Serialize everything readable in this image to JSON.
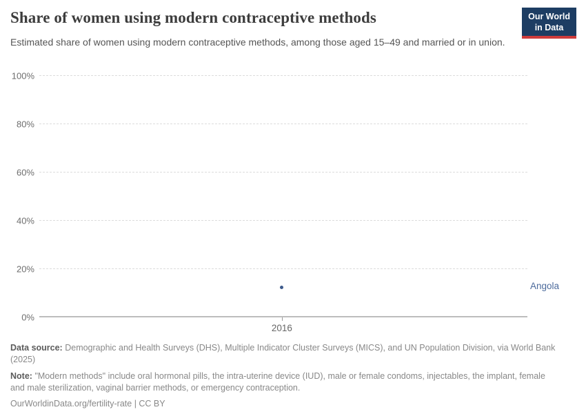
{
  "header": {
    "title": "Share of women using modern contraceptive methods",
    "subtitle": "Estimated share of women using modern contraceptive methods, among those aged 15–49 and married or in union.",
    "logo": {
      "line1": "Our World",
      "line2": "in Data"
    }
  },
  "chart_data": {
    "type": "scatter",
    "title": "Share of women using modern contraceptive methods",
    "xlabel": "",
    "ylabel": "",
    "ylim": [
      0,
      100
    ],
    "grid": "horizontal-dashed",
    "legend_position": "entity label at right of plot",
    "ytick_values": [
      0,
      20,
      40,
      60,
      80,
      100
    ],
    "ytick_labels": [
      "0%",
      "20%",
      "40%",
      "60%",
      "80%",
      "100%"
    ],
    "xtick_labels": [
      "2016"
    ],
    "series": [
      {
        "name": "Angola",
        "color": "#3d5a8c",
        "label_color": "#4c6a9c",
        "x": [
          2016
        ],
        "y": [
          12.5
        ]
      }
    ]
  },
  "footer": {
    "data_source_label": "Data source:",
    "data_source_text": "Demographic and Health Surveys (DHS), Multiple Indicator Cluster Surveys (MICS), and UN Population Division, via World Bank (2025)",
    "note_label": "Note:",
    "note_text": "\"Modern methods\" include oral hormonal pills, the intra-uterine device (IUD), male or female condoms, injectables, the implant, female and male sterilization, vaginal barrier methods, or emergency contraception.",
    "link": "OurWorldinData.org/fertility-rate | CC BY"
  },
  "colors": {
    "accent_blue": "#4c6a9c",
    "point_blue": "#3d5a8c",
    "logo_navy": "#1d3d63",
    "logo_red": "#cf3c3c",
    "gridline": "#dcdcdc",
    "axis_line": "#bdbdbd",
    "title_text": "#3d3d3d",
    "subtitle_text": "#555555",
    "tick_text": "#6e6e6e",
    "footer_text": "#888888",
    "footer_label_text": "#5b5b5b"
  }
}
